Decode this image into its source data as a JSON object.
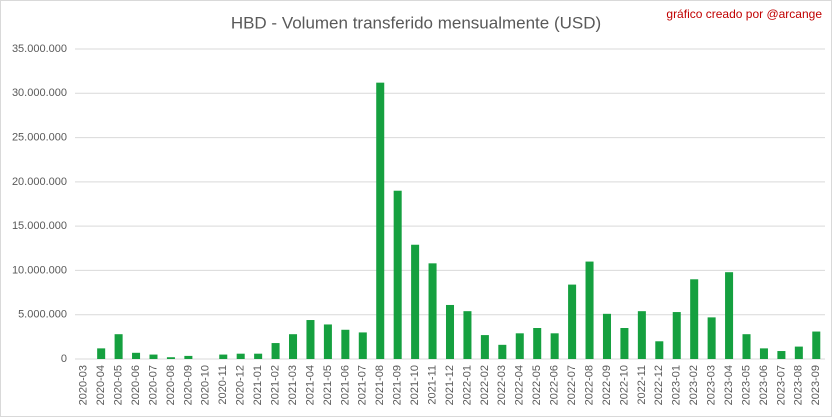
{
  "chart_data": {
    "type": "bar",
    "title": "HBD - Volumen transferido mensualmente (USD)",
    "watermark": "gráfico creado por @arcange",
    "categories": [
      "2020-03",
      "2020-04",
      "2020-05",
      "2020-06",
      "2020-07",
      "2020-08",
      "2020-09",
      "2020-10",
      "2020-11",
      "2020-12",
      "2021-01",
      "2021-02",
      "2021-03",
      "2021-04",
      "2021-05",
      "2021-06",
      "2021-07",
      "2021-08",
      "2021-09",
      "2021-10",
      "2021-11",
      "2021-12",
      "2022-01",
      "2022-02",
      "2022-03",
      "2022-04",
      "2022-05",
      "2022-06",
      "2022-07",
      "2022-08",
      "2022-09",
      "2022-10",
      "2022-11",
      "2022-12",
      "2023-01",
      "2023-02",
      "2023-03",
      "2023-04",
      "2023-05",
      "2023-06",
      "2023-07",
      "2023-08",
      "2023-09"
    ],
    "values": [
      0,
      1200000,
      2800000,
      700000,
      500000,
      200000,
      350000,
      0,
      500000,
      600000,
      600000,
      1800000,
      2800000,
      4400000,
      3900000,
      3300000,
      3000000,
      31200000,
      19000000,
      12900000,
      10800000,
      6100000,
      5400000,
      2700000,
      1600000,
      2900000,
      3500000,
      2900000,
      8400000,
      11000000,
      5100000,
      3500000,
      5400000,
      2000000,
      5300000,
      9000000,
      4700000,
      9800000,
      2800000,
      1200000,
      900000,
      1400000,
      3100000
    ],
    "color": "#15a03f",
    "ylim": [
      0,
      35000000
    ],
    "yticks": [
      0,
      {
        "value": 5000000,
        "label": "5.000.000"
      },
      {
        "value": 10000000,
        "label": "10.000.000"
      },
      {
        "value": 15000000,
        "label": "15.000.000"
      },
      {
        "value": 20000000,
        "label": "20.000.000"
      },
      {
        "value": 25000000,
        "label": "25.000.000"
      },
      {
        "value": 30000000,
        "label": "30.000.000"
      },
      {
        "value": 35000000,
        "label": "35.000.000"
      }
    ],
    "grid": true
  }
}
